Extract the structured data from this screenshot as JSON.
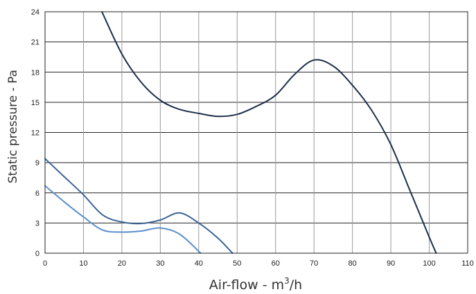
{
  "chart_data": {
    "type": "line",
    "title": "",
    "xlabel": "Air-flow - m",
    "xlabel_sup": "3",
    "xlabel_suffix": "/h",
    "ylabel": "Static pressure - Pa",
    "xlim": [
      0,
      110
    ],
    "ylim": [
      0,
      24
    ],
    "xticks": [
      0,
      10,
      20,
      30,
      40,
      50,
      60,
      70,
      80,
      90,
      100,
      110
    ],
    "yticks": [
      0,
      3,
      6,
      9,
      12,
      15,
      18,
      21,
      24
    ],
    "grid": true,
    "series": [
      {
        "color": "#1c2e4a",
        "points": [
          [
            14.8,
            24
          ],
          [
            20,
            19.8
          ],
          [
            25,
            17
          ],
          [
            30,
            15.2
          ],
          [
            35,
            14.3
          ],
          [
            40,
            13.9
          ],
          [
            45,
            13.6
          ],
          [
            50,
            13.8
          ],
          [
            55,
            14.6
          ],
          [
            60,
            15.7
          ],
          [
            65,
            17.8
          ],
          [
            70,
            19.2
          ],
          [
            75,
            18.6
          ],
          [
            80,
            16.7
          ],
          [
            85,
            14.2
          ],
          [
            90,
            10.8
          ],
          [
            95,
            6.2
          ],
          [
            100,
            1.6
          ],
          [
            101.8,
            0
          ]
        ]
      },
      {
        "color": "#3a6395",
        "points": [
          [
            0,
            9.4
          ],
          [
            5,
            7.6
          ],
          [
            10,
            5.8
          ],
          [
            15,
            3.8
          ],
          [
            20,
            3.1
          ],
          [
            25,
            2.95
          ],
          [
            30,
            3.3
          ],
          [
            35,
            4.0
          ],
          [
            40,
            3.0
          ],
          [
            45,
            1.5
          ],
          [
            48.8,
            0
          ]
        ]
      },
      {
        "color": "#5b8ec9",
        "points": [
          [
            0,
            6.7
          ],
          [
            5,
            5.1
          ],
          [
            10,
            3.6
          ],
          [
            15,
            2.3
          ],
          [
            20,
            2.1
          ],
          [
            25,
            2.2
          ],
          [
            30,
            2.5
          ],
          [
            35,
            1.9
          ],
          [
            40.5,
            0
          ]
        ]
      }
    ]
  }
}
